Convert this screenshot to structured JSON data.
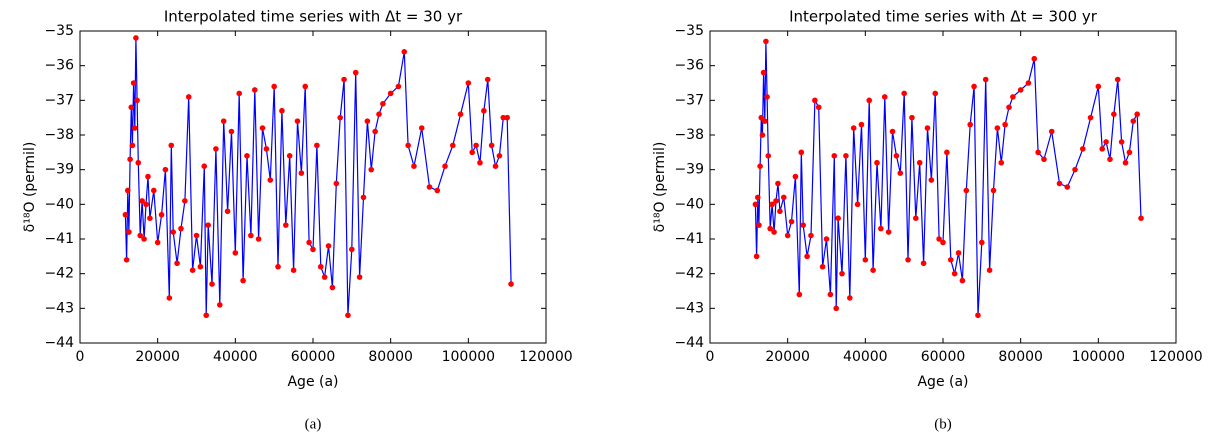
{
  "chart_data": [
    {
      "type": "line",
      "title": "Interpolated time series with Δt = 30 yr",
      "xlabel": "Age (a)",
      "ylabel": "δ¹⁸O (permil)",
      "caption": "(a)",
      "x": [
        11700,
        12000,
        12300,
        12600,
        12900,
        13200,
        13500,
        13800,
        14100,
        14400,
        14700,
        15000,
        15500,
        16000,
        16500,
        17000,
        17500,
        18000,
        19000,
        20000,
        21000,
        22000,
        23000,
        23500,
        24000,
        25000,
        26000,
        27000,
        28000,
        29000,
        30000,
        31000,
        32000,
        32500,
        33000,
        34000,
        35000,
        36000,
        37000,
        38000,
        39000,
        40000,
        41000,
        42000,
        43000,
        44000,
        45000,
        46000,
        47000,
        48000,
        49000,
        50000,
        51000,
        52000,
        53000,
        54000,
        55000,
        56000,
        57000,
        58000,
        59000,
        60000,
        61000,
        62000,
        63000,
        64000,
        65000,
        66000,
        67000,
        68000,
        69000,
        70000,
        71000,
        72000,
        73000,
        74000,
        75000,
        76000,
        77000,
        78000,
        80000,
        82000,
        83500,
        84500,
        86000,
        88000,
        90000,
        92000,
        94000,
        96000,
        98000,
        100000,
        101000,
        102000,
        103000,
        104000,
        105000,
        106000,
        107000,
        108000,
        109000,
        110000,
        111000
      ],
      "series": [
        {
          "color": "#0000ff",
          "marker_color": "#ff0000",
          "values": [
            -40.3,
            -41.6,
            -39.6,
            -40.8,
            -38.7,
            -37.2,
            -38.3,
            -36.5,
            -37.8,
            -35.2,
            -37.0,
            -38.8,
            -40.9,
            -39.9,
            -41.0,
            -40.0,
            -39.2,
            -40.4,
            -39.6,
            -41.1,
            -40.3,
            -39.0,
            -42.7,
            -38.3,
            -40.8,
            -41.7,
            -40.7,
            -39.9,
            -36.9,
            -41.9,
            -40.9,
            -41.8,
            -38.9,
            -43.2,
            -40.6,
            -42.3,
            -38.4,
            -42.9,
            -37.6,
            -40.2,
            -37.9,
            -41.4,
            -36.8,
            -42.2,
            -38.6,
            -40.9,
            -36.7,
            -41.0,
            -37.8,
            -38.4,
            -39.3,
            -36.6,
            -41.8,
            -37.3,
            -40.6,
            -38.6,
            -41.9,
            -37.6,
            -39.1,
            -36.6,
            -41.1,
            -41.3,
            -38.3,
            -41.8,
            -42.1,
            -41.2,
            -42.4,
            -39.4,
            -37.5,
            -36.4,
            -43.2,
            -41.3,
            -36.2,
            -42.1,
            -39.8,
            -37.6,
            -39.0,
            -37.9,
            -37.4,
            -37.1,
            -36.8,
            -36.6,
            -35.6,
            -38.3,
            -38.9,
            -37.8,
            -39.5,
            -39.6,
            -38.9,
            -38.3,
            -37.4,
            -36.5,
            -38.5,
            -38.3,
            -38.8,
            -37.3,
            -36.4,
            -38.3,
            -38.9,
            -38.6,
            -37.5,
            -37.5,
            -42.3
          ]
        }
      ],
      "xlim": [
        0,
        120000
      ],
      "xticks": [
        0,
        20000,
        40000,
        60000,
        80000,
        100000,
        120000
      ],
      "ylim": [
        -44,
        -35
      ],
      "yticks": [
        {
          "value": -44,
          "label": "−44"
        },
        {
          "value": -43,
          "label": "−43"
        },
        {
          "value": -42,
          "label": "−42"
        },
        {
          "value": -41,
          "label": "−41"
        },
        {
          "value": -40,
          "label": "−40"
        },
        {
          "value": -39,
          "label": "−39"
        },
        {
          "value": -38,
          "label": "−38"
        },
        {
          "value": -37,
          "label": "−37"
        },
        {
          "value": -36,
          "label": "−36"
        },
        {
          "value": -35,
          "label": "−35"
        }
      ]
    },
    {
      "type": "line",
      "title": "Interpolated time series with Δt = 300 yr",
      "xlabel": "Age (a)",
      "ylabel": "δ¹⁸O (permil)",
      "caption": "(b)",
      "x": [
        11700,
        12000,
        12300,
        12600,
        12900,
        13200,
        13500,
        13800,
        14100,
        14400,
        14700,
        15000,
        15500,
        16000,
        16500,
        17000,
        17500,
        18000,
        19000,
        20000,
        21000,
        22000,
        23000,
        23500,
        24000,
        25000,
        26000,
        27000,
        28000,
        29000,
        30000,
        31000,
        32000,
        32500,
        33000,
        34000,
        35000,
        36000,
        37000,
        38000,
        39000,
        40000,
        41000,
        42000,
        43000,
        44000,
        45000,
        46000,
        47000,
        48000,
        49000,
        50000,
        51000,
        52000,
        53000,
        54000,
        55000,
        56000,
        57000,
        58000,
        59000,
        60000,
        61000,
        62000,
        63000,
        64000,
        65000,
        66000,
        67000,
        68000,
        69000,
        70000,
        71000,
        72000,
        73000,
        74000,
        75000,
        76000,
        77000,
        78000,
        80000,
        82000,
        83500,
        84500,
        86000,
        88000,
        90000,
        92000,
        94000,
        96000,
        98000,
        100000,
        101000,
        102000,
        103000,
        104000,
        105000,
        106000,
        107000,
        108000,
        109000,
        110000,
        111000
      ],
      "series": [
        {
          "color": "#0000ff",
          "marker_color": "#ff0000",
          "values": [
            -40.0,
            -41.5,
            -39.8,
            -40.6,
            -38.9,
            -37.5,
            -38.0,
            -36.2,
            -37.6,
            -35.3,
            -36.9,
            -38.6,
            -40.7,
            -40.0,
            -40.8,
            -39.9,
            -39.4,
            -40.2,
            -39.8,
            -40.9,
            -40.5,
            -39.2,
            -42.6,
            -38.5,
            -40.6,
            -41.5,
            -40.9,
            -37.0,
            -37.2,
            -41.8,
            -41.0,
            -42.6,
            -38.6,
            -43.0,
            -40.4,
            -42.0,
            -38.6,
            -42.7,
            -37.8,
            -40.0,
            -37.7,
            -41.6,
            -37.0,
            -41.9,
            -38.8,
            -40.7,
            -36.9,
            -40.8,
            -37.9,
            -38.6,
            -39.1,
            -36.8,
            -41.6,
            -37.5,
            -40.4,
            -38.8,
            -41.7,
            -37.8,
            -39.3,
            -36.8,
            -41.0,
            -41.1,
            -38.5,
            -41.6,
            -42.0,
            -41.4,
            -42.2,
            -39.6,
            -37.7,
            -36.6,
            -43.2,
            -41.1,
            -36.4,
            -41.9,
            -39.6,
            -37.8,
            -38.8,
            -37.7,
            -37.2,
            -36.9,
            -36.7,
            -36.5,
            -35.8,
            -38.5,
            -38.7,
            -37.9,
            -39.4,
            -39.5,
            -39.0,
            -38.4,
            -37.5,
            -36.6,
            -38.4,
            -38.2,
            -38.7,
            -37.4,
            -36.4,
            -38.2,
            -38.8,
            -38.5,
            -37.6,
            -37.4,
            -40.4
          ]
        }
      ],
      "xlim": [
        0,
        120000
      ],
      "xticks": [
        0,
        20000,
        40000,
        60000,
        80000,
        100000,
        120000
      ],
      "ylim": [
        -44,
        -35
      ],
      "yticks": [
        {
          "value": -44,
          "label": "−44"
        },
        {
          "value": -43,
          "label": "−43"
        },
        {
          "value": -42,
          "label": "−42"
        },
        {
          "value": -41,
          "label": "−41"
        },
        {
          "value": -40,
          "label": "−40"
        },
        {
          "value": -39,
          "label": "−39"
        },
        {
          "value": -38,
          "label": "−38"
        },
        {
          "value": -37,
          "label": "−37"
        },
        {
          "value": -36,
          "label": "−36"
        },
        {
          "value": -35,
          "label": "−35"
        }
      ]
    }
  ]
}
